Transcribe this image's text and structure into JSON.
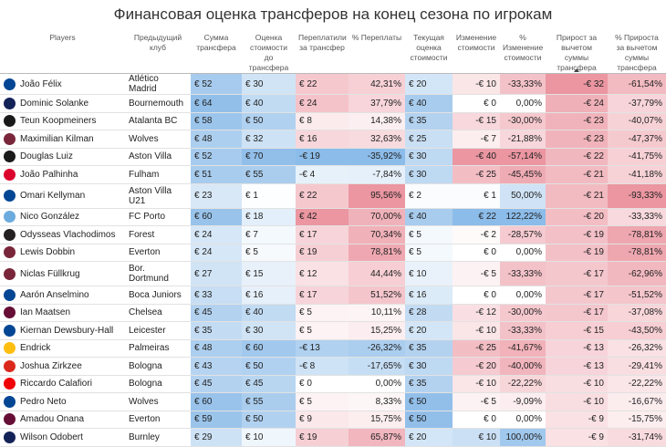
{
  "title": "Финансовая оценка трансферов на конец сезона по игрокам",
  "columns": [
    "Players",
    "Предыдущий клуб",
    "Сумма трансфера",
    "Оценка стоимости до трансфера",
    "Переплатили за трансфер",
    "% Переплаты",
    "Текущая оценка стоимости",
    "Изменение стоимости",
    "% Изменение стоимости",
    "Прирост за вычетом суммы трансфера",
    "% Прироста за вычетом суммы трансфера"
  ],
  "sorted_column_index": 9,
  "colors": {
    "blue": "#7fb4e6",
    "red": "#e98a96"
  },
  "rows": [
    {
      "player": "João Félix",
      "club": "Atlético Madrid",
      "crest_color": "#034694",
      "fee": "€ 52",
      "fee_v": 52,
      "before": "€ 30",
      "before_v": 30,
      "over": "€ 22",
      "over_v": 22,
      "over_pct": "42,31%",
      "over_pct_v": 42.31,
      "current": "€ 20",
      "current_v": 20,
      "change": "-€ 10",
      "change_v": -10,
      "change_pct": "-33,33%",
      "change_pct_v": -33.33,
      "net": "-€ 32",
      "net_v": -32,
      "net_pct": "-61,54%",
      "net_pct_v": -61.54
    },
    {
      "player": "Dominic Solanke",
      "club": "Bournemouth",
      "crest_color": "#132257",
      "fee": "€ 64",
      "fee_v": 64,
      "before": "€ 40",
      "before_v": 40,
      "over": "€ 24",
      "over_v": 24,
      "over_pct": "37,79%",
      "over_pct_v": 37.79,
      "current": "€ 40",
      "current_v": 40,
      "change": "€ 0",
      "change_v": 0,
      "change_pct": "0,00%",
      "change_pct_v": 0,
      "net": "-€ 24",
      "net_v": -24,
      "net_pct": "-37,79%",
      "net_pct_v": -37.79
    },
    {
      "player": "Teun Koopmeiners",
      "club": "Atalanta BC",
      "crest_color": "#1a1a1a",
      "fee": "€ 58",
      "fee_v": 58,
      "before": "€ 50",
      "before_v": 50,
      "over": "€ 8",
      "over_v": 8,
      "over_pct": "14,38%",
      "over_pct_v": 14.38,
      "current": "€ 35",
      "current_v": 35,
      "change": "-€ 15",
      "change_v": -15,
      "change_pct": "-30,00%",
      "change_pct_v": -30,
      "net": "-€ 23",
      "net_v": -23,
      "net_pct": "-40,07%",
      "net_pct_v": -40.07
    },
    {
      "player": "Maximilian Kilman",
      "club": "Wolves",
      "crest_color": "#7a263a",
      "fee": "€ 48",
      "fee_v": 48,
      "before": "€ 32",
      "before_v": 32,
      "over": "€ 16",
      "over_v": 16,
      "over_pct": "32,63%",
      "over_pct_v": 32.63,
      "current": "€ 25",
      "current_v": 25,
      "change": "-€ 7",
      "change_v": -7,
      "change_pct": "-21,88%",
      "change_pct_v": -21.88,
      "net": "-€ 23",
      "net_v": -23,
      "net_pct": "-47,37%",
      "net_pct_v": -47.37
    },
    {
      "player": "Douglas Luiz",
      "club": "Aston Villa",
      "crest_color": "#1a1a1a",
      "fee": "€ 52",
      "fee_v": 52,
      "before": "€ 70",
      "before_v": 70,
      "over": "-€ 19",
      "over_v": -19,
      "over_pct": "-35,92%",
      "over_pct_v": -35.92,
      "current": "€ 30",
      "current_v": 30,
      "change": "-€ 40",
      "change_v": -40,
      "change_pct": "-57,14%",
      "change_pct_v": -57.14,
      "net": "-€ 22",
      "net_v": -22,
      "net_pct": "-41,75%",
      "net_pct_v": -41.75
    },
    {
      "player": "João Palhinha",
      "club": "Fulham",
      "crest_color": "#dc052d",
      "fee": "€ 51",
      "fee_v": 51,
      "before": "€ 55",
      "before_v": 55,
      "over": "-€ 4",
      "over_v": -4,
      "over_pct": "-7,84%",
      "over_pct_v": -7.84,
      "current": "€ 30",
      "current_v": 30,
      "change": "-€ 25",
      "change_v": -25,
      "change_pct": "-45,45%",
      "change_pct_v": -45.45,
      "net": "-€ 21",
      "net_v": -21,
      "net_pct": "-41,18%",
      "net_pct_v": -41.18
    },
    {
      "player": "Omari Kellyman",
      "club": "Aston Villa U21",
      "crest_color": "#034694",
      "fee": "€ 23",
      "fee_v": 23,
      "before": "€ 1",
      "before_v": 1,
      "over": "€ 22",
      "over_v": 22,
      "over_pct": "95,56%",
      "over_pct_v": 95.56,
      "current": "€ 2",
      "current_v": 2,
      "change": "€ 1",
      "change_v": 1,
      "change_pct": "50,00%",
      "change_pct_v": 50,
      "net": "-€ 21",
      "net_v": -21,
      "net_pct": "-93,33%",
      "net_pct_v": -93.33,
      "tall": true
    },
    {
      "player": "Nico González",
      "club": "FC Porto",
      "crest_color": "#6cabdd",
      "fee": "€ 60",
      "fee_v": 60,
      "before": "€ 18",
      "before_v": 18,
      "over": "€ 42",
      "over_v": 42,
      "over_pct": "70,00%",
      "over_pct_v": 70,
      "current": "€ 40",
      "current_v": 40,
      "change": "€ 22",
      "change_v": 22,
      "change_pct": "122,22%",
      "change_pct_v": 122.22,
      "net": "-€ 20",
      "net_v": -20,
      "net_pct": "-33,33%",
      "net_pct_v": -33.33
    },
    {
      "player": "Odysseas Vlachodimos",
      "club": "Forest",
      "crest_color": "#241f20",
      "fee": "€ 24",
      "fee_v": 24,
      "before": "€ 7",
      "before_v": 7,
      "over": "€ 17",
      "over_v": 17,
      "over_pct": "70,34%",
      "over_pct_v": 70.34,
      "current": "€ 5",
      "current_v": 5,
      "change": "-€ 2",
      "change_v": -2,
      "change_pct": "-28,57%",
      "change_pct_v": -28.57,
      "net": "-€ 19",
      "net_v": -19,
      "net_pct": "-78,81%",
      "net_pct_v": -78.81
    },
    {
      "player": "Lewis Dobbin",
      "club": "Everton",
      "crest_color": "#7a263a",
      "fee": "€ 24",
      "fee_v": 24,
      "before": "€ 5",
      "before_v": 5,
      "over": "€ 19",
      "over_v": 19,
      "over_pct": "78,81%",
      "over_pct_v": 78.81,
      "current": "€ 5",
      "current_v": 5,
      "change": "€ 0",
      "change_v": 0,
      "change_pct": "0,00%",
      "change_pct_v": 0,
      "net": "-€ 19",
      "net_v": -19,
      "net_pct": "-78,81%",
      "net_pct_v": -78.81
    },
    {
      "player": "Niclas Füllkrug",
      "club": "Bor. Dortmund",
      "crest_color": "#7a263a",
      "fee": "€ 27",
      "fee_v": 27,
      "before": "€ 15",
      "before_v": 15,
      "over": "€ 12",
      "over_v": 12,
      "over_pct": "44,44%",
      "over_pct_v": 44.44,
      "current": "€ 10",
      "current_v": 10,
      "change": "-€ 5",
      "change_v": -5,
      "change_pct": "-33,33%",
      "change_pct_v": -33.33,
      "net": "-€ 17",
      "net_v": -17,
      "net_pct": "-62,96%",
      "net_pct_v": -62.96,
      "tall": true
    },
    {
      "player": "Aarón Anselmino",
      "club": "Boca Juniors",
      "crest_color": "#034694",
      "fee": "€ 33",
      "fee_v": 33,
      "before": "€ 16",
      "before_v": 16,
      "over": "€ 17",
      "over_v": 17,
      "over_pct": "51,52%",
      "over_pct_v": 51.52,
      "current": "€ 16",
      "current_v": 16,
      "change": "€ 0",
      "change_v": 0,
      "change_pct": "0,00%",
      "change_pct_v": 0,
      "net": "-€ 17",
      "net_v": -17,
      "net_pct": "-51,52%",
      "net_pct_v": -51.52
    },
    {
      "player": "Ian Maatsen",
      "club": "Chelsea",
      "crest_color": "#670e36",
      "fee": "€ 45",
      "fee_v": 45,
      "before": "€ 40",
      "before_v": 40,
      "over": "€ 5",
      "over_v": 5,
      "over_pct": "10,11%",
      "over_pct_v": 10.11,
      "current": "€ 28",
      "current_v": 28,
      "change": "-€ 12",
      "change_v": -12,
      "change_pct": "-30,00%",
      "change_pct_v": -30,
      "net": "-€ 17",
      "net_v": -17,
      "net_pct": "-37,08%",
      "net_pct_v": -37.08
    },
    {
      "player": "Kiernan Dewsbury-Hall",
      "club": "Leicester",
      "crest_color": "#034694",
      "fee": "€ 35",
      "fee_v": 35,
      "before": "€ 30",
      "before_v": 30,
      "over": "€ 5",
      "over_v": 5,
      "over_pct": "15,25%",
      "over_pct_v": 15.25,
      "current": "€ 20",
      "current_v": 20,
      "change": "-€ 10",
      "change_v": -10,
      "change_pct": "-33,33%",
      "change_pct_v": -33.33,
      "net": "-€ 15",
      "net_v": -15,
      "net_pct": "-43,50%",
      "net_pct_v": -43.5
    },
    {
      "player": "Endrick",
      "club": "Palmeiras",
      "crest_color": "#febe10",
      "fee": "€ 48",
      "fee_v": 48,
      "before": "€ 60",
      "before_v": 60,
      "over": "-€ 13",
      "over_v": -13,
      "over_pct": "-26,32%",
      "over_pct_v": -26.32,
      "current": "€ 35",
      "current_v": 35,
      "change": "-€ 25",
      "change_v": -25,
      "change_pct": "-41,67%",
      "change_pct_v": -41.67,
      "net": "-€ 13",
      "net_v": -13,
      "net_pct": "-26,32%",
      "net_pct_v": -26.32
    },
    {
      "player": "Joshua Zirkzee",
      "club": "Bologna",
      "crest_color": "#da291c",
      "fee": "€ 43",
      "fee_v": 43,
      "before": "€ 50",
      "before_v": 50,
      "over": "-€ 8",
      "over_v": -8,
      "over_pct": "-17,65%",
      "over_pct_v": -17.65,
      "current": "€ 30",
      "current_v": 30,
      "change": "-€ 20",
      "change_v": -20,
      "change_pct": "-40,00%",
      "change_pct_v": -40,
      "net": "-€ 13",
      "net_v": -13,
      "net_pct": "-29,41%",
      "net_pct_v": -29.41
    },
    {
      "player": "Riccardo Calafiori",
      "club": "Bologna",
      "crest_color": "#ef0107",
      "fee": "€ 45",
      "fee_v": 45,
      "before": "€ 45",
      "before_v": 45,
      "over": "€ 0",
      "over_v": 0,
      "over_pct": "0,00%",
      "over_pct_v": 0,
      "current": "€ 35",
      "current_v": 35,
      "change": "-€ 10",
      "change_v": -10,
      "change_pct": "-22,22%",
      "change_pct_v": -22.22,
      "net": "-€ 10",
      "net_v": -10,
      "net_pct": "-22,22%",
      "net_pct_v": -22.22
    },
    {
      "player": "Pedro Neto",
      "club": "Wolves",
      "crest_color": "#034694",
      "fee": "€ 60",
      "fee_v": 60,
      "before": "€ 55",
      "before_v": 55,
      "over": "€ 5",
      "over_v": 5,
      "over_pct": "8,33%",
      "over_pct_v": 8.33,
      "current": "€ 50",
      "current_v": 50,
      "change": "-€ 5",
      "change_v": -5,
      "change_pct": "-9,09%",
      "change_pct_v": -9.09,
      "net": "-€ 10",
      "net_v": -10,
      "net_pct": "-16,67%",
      "net_pct_v": -16.67
    },
    {
      "player": "Amadou Onana",
      "club": "Everton",
      "crest_color": "#670e36",
      "fee": "€ 59",
      "fee_v": 59,
      "before": "€ 50",
      "before_v": 50,
      "over": "€ 9",
      "over_v": 9,
      "over_pct": "15,75%",
      "over_pct_v": 15.75,
      "current": "€ 50",
      "current_v": 50,
      "change": "€ 0",
      "change_v": 0,
      "change_pct": "0,00%",
      "change_pct_v": 0,
      "net": "-€ 9",
      "net_v": -9,
      "net_pct": "-15,75%",
      "net_pct_v": -15.75
    },
    {
      "player": "Wilson Odobert",
      "club": "Burnley",
      "crest_color": "#132257",
      "fee": "€ 29",
      "fee_v": 29,
      "before": "€ 10",
      "before_v": 10,
      "over": "€ 19",
      "over_v": 19,
      "over_pct": "65,87%",
      "over_pct_v": 65.87,
      "current": "€ 20",
      "current_v": 20,
      "change": "€ 10",
      "change_v": 10,
      "change_pct": "100,00%",
      "change_pct_v": 100,
      "net": "-€ 9",
      "net_v": -9,
      "net_pct": "-31,74%",
      "net_pct_v": -31.74
    }
  ]
}
